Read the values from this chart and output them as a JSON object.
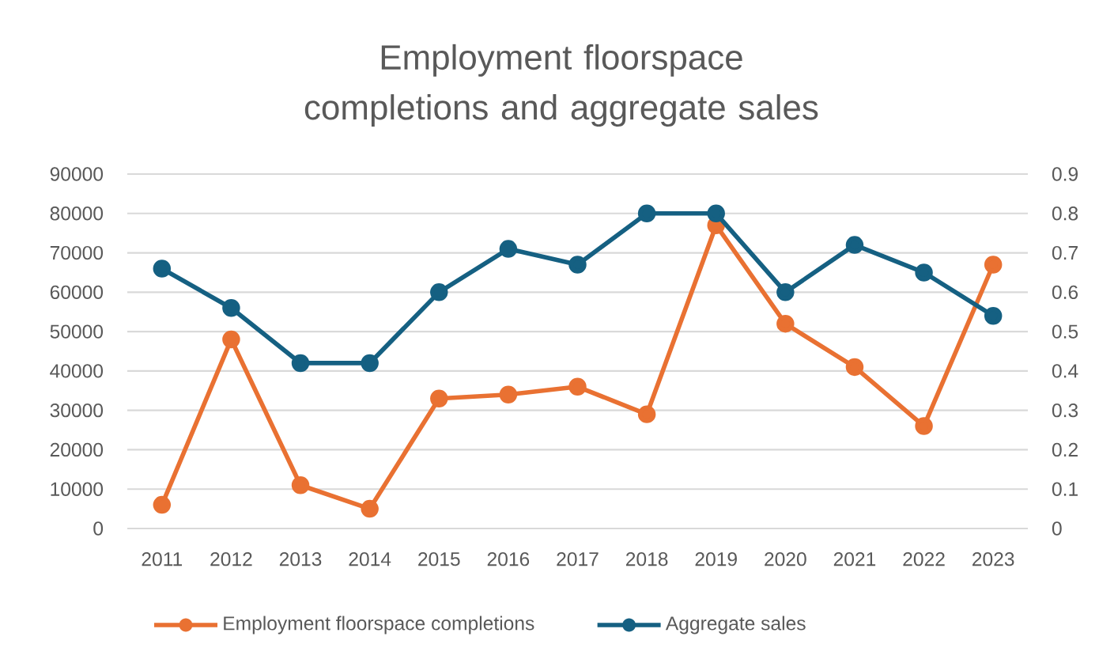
{
  "chart_data": {
    "type": "line",
    "title": "Employment floorspace completions and aggregate sales",
    "categories": [
      "2011",
      "2012",
      "2013",
      "2014",
      "2015",
      "2016",
      "2017",
      "2018",
      "2019",
      "2020",
      "2021",
      "2022",
      "2023"
    ],
    "series": [
      {
        "name": "Employment floorspace completions",
        "color": "#e97132",
        "values": [
          6000,
          48000,
          11000,
          5000,
          33000,
          34000,
          36000,
          29000,
          77000,
          52000,
          41000,
          26000,
          67000
        ]
      },
      {
        "name": "Aggregate sales",
        "color": "#156082",
        "axis": "y2",
        "values": [
          0.66,
          0.56,
          0.42,
          0.42,
          0.6,
          0.71,
          0.67,
          0.8,
          0.8,
          0.6,
          0.72,
          0.65,
          0.54
        ]
      }
    ],
    "ylim": [
      0,
      90000
    ],
    "yticks": [
      0,
      10000,
      20000,
      30000,
      40000,
      50000,
      60000,
      70000,
      80000,
      90000
    ],
    "y2lim": [
      0,
      0.9
    ],
    "y2ticks": [
      0,
      0.1,
      0.2,
      0.3,
      0.4,
      0.5,
      0.6,
      0.7,
      0.8,
      0.9
    ],
    "grid": "y",
    "legend": "bottom",
    "marker": "circle",
    "line_style": "solid"
  }
}
